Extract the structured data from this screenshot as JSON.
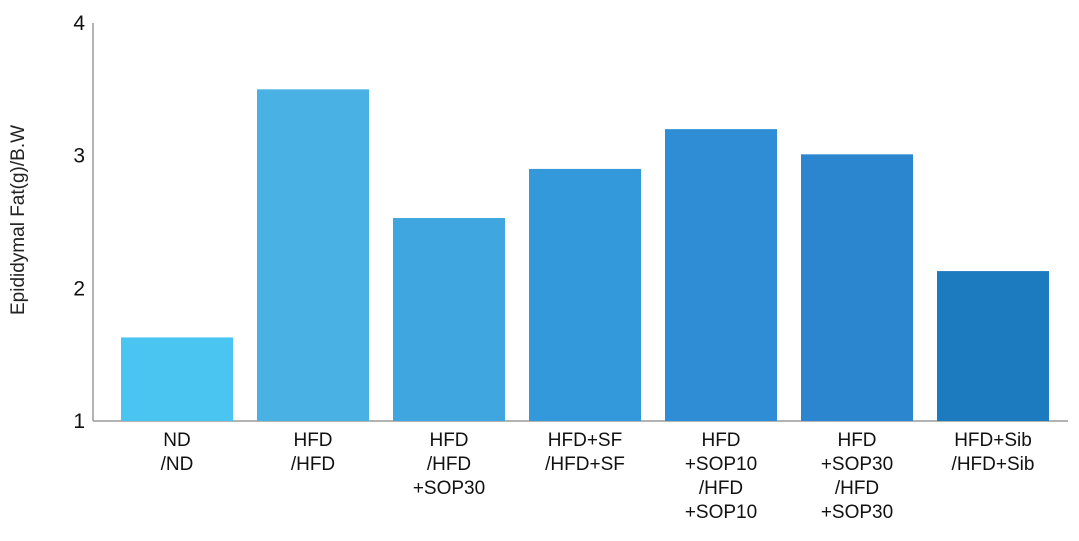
{
  "chart_data": {
    "type": "bar",
    "title": "",
    "xlabel": "",
    "ylabel": "Epididymal Fat(g)/B.W",
    "ylim": [
      1,
      4
    ],
    "yticks": [
      "1",
      "2",
      "3",
      "4"
    ],
    "grid": false,
    "legend": "none",
    "categories": [
      [
        "ND",
        "/ND"
      ],
      [
        "HFD",
        "/HFD"
      ],
      [
        "HFD",
        "/HFD",
        "+SOP30"
      ],
      [
        "HFD+SF",
        "/HFD+SF"
      ],
      [
        "HFD",
        "+SOP10",
        "/HFD",
        "+SOP10"
      ],
      [
        "HFD",
        "+SOP30",
        "/HFD",
        "+SOP30"
      ],
      [
        "HFD+Sib",
        "/HFD+Sib"
      ]
    ],
    "values": [
      1.63,
      3.5,
      2.53,
      2.9,
      3.2,
      3.01,
      2.13
    ],
    "colors": [
      "#4ac4f0",
      "#4ab1e4",
      "#3fa6e0",
      "#3399da",
      "#2e8dd4",
      "#2b85cf",
      "#1c7abf"
    ],
    "axis_color": "#9a9a9a"
  }
}
